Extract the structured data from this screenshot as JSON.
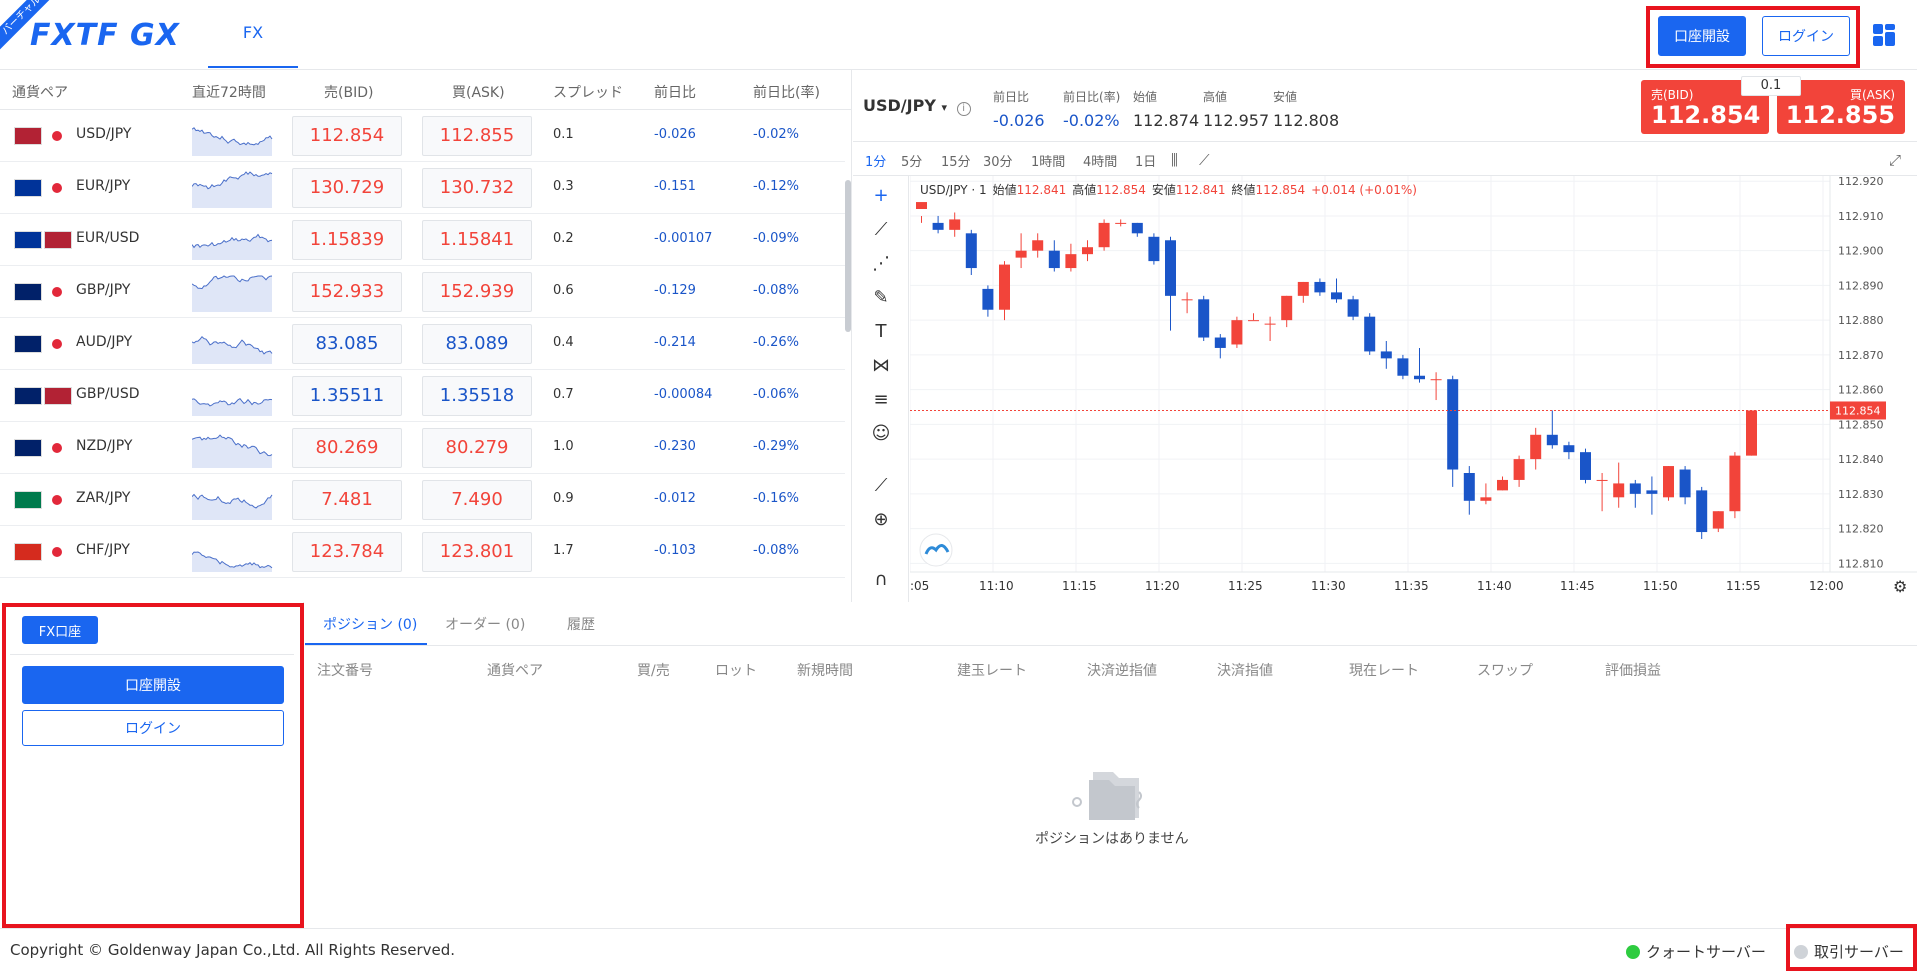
{
  "header": {
    "logo": "FXTF GX",
    "ribbon": "バーチャル",
    "tab_fx": "FX",
    "open_account": "口座開設",
    "login": "ログイン"
  },
  "rates_table": {
    "columns": [
      "通貨ペア",
      "直近72時間",
      "売(BID)",
      "買(ASK)",
      "スプレッド",
      "前日比",
      "前日比(率)"
    ],
    "rows": [
      {
        "pair": "USD/JPY",
        "bid": "112.854",
        "ask": "112.855",
        "spread": "0.1",
        "change": "-0.026",
        "change_pct": "-0.02%",
        "price_color": "up"
      },
      {
        "pair": "EUR/JPY",
        "bid": "130.729",
        "ask": "130.732",
        "spread": "0.3",
        "change": "-0.151",
        "change_pct": "-0.12%",
        "price_color": "up"
      },
      {
        "pair": "EUR/USD",
        "bid": "1.15839",
        "ask": "1.15841",
        "spread": "0.2",
        "change": "-0.00107",
        "change_pct": "-0.09%",
        "price_color": "up"
      },
      {
        "pair": "GBP/JPY",
        "bid": "152.933",
        "ask": "152.939",
        "spread": "0.6",
        "change": "-0.129",
        "change_pct": "-0.08%",
        "price_color": "up"
      },
      {
        "pair": "AUD/JPY",
        "bid": "83.085",
        "ask": "83.089",
        "spread": "0.4",
        "change": "-0.214",
        "change_pct": "-0.26%",
        "price_color": "down"
      },
      {
        "pair": "GBP/USD",
        "bid": "1.35511",
        "ask": "1.35518",
        "spread": "0.7",
        "change": "-0.00084",
        "change_pct": "-0.06%",
        "price_color": "down"
      },
      {
        "pair": "NZD/JPY",
        "bid": "80.269",
        "ask": "80.279",
        "spread": "1.0",
        "change": "-0.230",
        "change_pct": "-0.29%",
        "price_color": "up"
      },
      {
        "pair": "ZAR/JPY",
        "bid": "7.481",
        "ask": "7.490",
        "spread": "0.9",
        "change": "-0.012",
        "change_pct": "-0.16%",
        "price_color": "up"
      },
      {
        "pair": "CHF/JPY",
        "bid": "123.784",
        "ask": "123.801",
        "spread": "1.7",
        "change": "-0.103",
        "change_pct": "-0.08%",
        "price_color": "up"
      }
    ]
  },
  "chart_header": {
    "symbol": "USD/JPY",
    "stats": [
      {
        "label": "前日比",
        "value": "-0.026",
        "color": "#1a55c8"
      },
      {
        "label": "前日比(率)",
        "value": "-0.02%",
        "color": "#1a55c8"
      },
      {
        "label": "始値",
        "value": "112.874",
        "color": "#333333"
      },
      {
        "label": "高値",
        "value": "112.957",
        "color": "#333333"
      },
      {
        "label": "安値",
        "value": "112.808",
        "color": "#333333"
      }
    ],
    "bid_label": "売(BID)",
    "bid_value": "112.854",
    "ask_label": "買(ASK)",
    "ask_value": "112.855",
    "spread": "0.1"
  },
  "timeframes": [
    "1分",
    "5分",
    "15分",
    "30分",
    "1時間",
    "4時間",
    "1日"
  ],
  "chart_legend": {
    "title": "USD/JPY · 1",
    "open_label": "始値",
    "open": "112.841",
    "high_label": "高値",
    "high": "112.854",
    "low_label": "安値",
    "low": "112.841",
    "close_label": "終値",
    "close": "112.854",
    "change": "+0.014 (+0.01%)"
  },
  "chart_data": {
    "type": "candlestick",
    "x_ticks": [
      ":05",
      "11:10",
      "11:15",
      "11:20",
      "11:25",
      "11:30",
      "11:35",
      "11:40",
      "11:45",
      "11:50",
      "11:55",
      "12:00"
    ],
    "y_ticks": [
      "112.920",
      "112.910",
      "112.900",
      "112.890",
      "112.880",
      "112.870",
      "112.860",
      "112.850",
      "112.840",
      "112.830",
      "112.820",
      "112.810"
    ],
    "ylim": [
      112.8075,
      112.9215
    ],
    "current_price": "112.854",
    "candles": [
      [
        112.912,
        112.914,
        112.91,
        112.908
      ],
      [
        112.908,
        112.906,
        112.91,
        112.905
      ],
      [
        112.906,
        112.909,
        112.911,
        112.904
      ],
      [
        112.905,
        112.895,
        112.906,
        112.893
      ],
      [
        112.889,
        112.883,
        112.89,
        112.881
      ],
      [
        112.883,
        112.896,
        112.897,
        112.88
      ],
      [
        112.898,
        112.9,
        112.905,
        112.895
      ],
      [
        112.9,
        112.903,
        112.905,
        112.898
      ],
      [
        112.9,
        112.895,
        112.903,
        112.894
      ],
      [
        112.895,
        112.899,
        112.902,
        112.894
      ],
      [
        112.899,
        112.901,
        112.903,
        112.897
      ],
      [
        112.901,
        112.908,
        112.909,
        112.9
      ],
      [
        112.908,
        112.908,
        112.909,
        112.907
      ],
      [
        112.908,
        112.905,
        112.908,
        112.904
      ],
      [
        112.904,
        112.897,
        112.905,
        112.896
      ],
      [
        112.903,
        112.887,
        112.904,
        112.877
      ],
      [
        112.886,
        112.886,
        112.888,
        112.882
      ],
      [
        112.886,
        112.875,
        112.887,
        112.874
      ],
      [
        112.875,
        112.872,
        112.876,
        112.869
      ],
      [
        112.873,
        112.88,
        112.881,
        112.872
      ],
      [
        112.88,
        112.88,
        112.882,
        112.88
      ],
      [
        112.879,
        112.879,
        112.881,
        112.874
      ],
      [
        112.88,
        112.887,
        112.887,
        112.878
      ],
      [
        112.887,
        112.891,
        112.891,
        112.885
      ],
      [
        112.891,
        112.888,
        112.892,
        112.887
      ],
      [
        112.888,
        112.886,
        112.892,
        112.885
      ],
      [
        112.886,
        112.881,
        112.887,
        112.88
      ],
      [
        112.881,
        112.871,
        112.882,
        112.87
      ],
      [
        112.871,
        112.869,
        112.874,
        112.866
      ],
      [
        112.869,
        112.864,
        112.87,
        112.863
      ],
      [
        112.864,
        112.863,
        112.872,
        112.862
      ],
      [
        112.863,
        112.863,
        112.865,
        112.857
      ],
      [
        112.863,
        112.837,
        112.864,
        112.832
      ],
      [
        112.836,
        112.828,
        112.838,
        112.824
      ],
      [
        112.828,
        112.829,
        112.833,
        112.827
      ],
      [
        112.831,
        112.834,
        112.835,
        112.831
      ],
      [
        112.834,
        112.84,
        112.841,
        112.832
      ],
      [
        112.84,
        112.847,
        112.849,
        112.837
      ],
      [
        112.847,
        112.844,
        112.854,
        112.843
      ],
      [
        112.844,
        112.842,
        112.845,
        112.84
      ],
      [
        112.842,
        112.834,
        112.843,
        112.833
      ],
      [
        112.834,
        112.834,
        112.836,
        112.825
      ],
      [
        112.829,
        112.833,
        112.839,
        112.826
      ],
      [
        112.833,
        112.83,
        112.834,
        112.826
      ],
      [
        112.831,
        112.83,
        112.835,
        112.824
      ],
      [
        112.829,
        112.838,
        112.838,
        112.828
      ],
      [
        112.837,
        112.829,
        112.838,
        112.827
      ],
      [
        112.831,
        112.819,
        112.832,
        112.817
      ],
      [
        112.82,
        112.825,
        112.825,
        112.819
      ],
      [
        112.825,
        112.841,
        112.842,
        112.823
      ],
      [
        112.841,
        112.854,
        112.854,
        112.841
      ]
    ]
  },
  "account": {
    "tag": "FX口座",
    "open_account": "口座開設",
    "login": "ログイン"
  },
  "positions": {
    "tabs": [
      "ポジション (0)",
      "オーダー (0)",
      "履歴"
    ],
    "columns": [
      "注文番号",
      "通貨ペア",
      "買/売",
      "ロット",
      "新規時間",
      "建玉レート",
      "決済逆指値",
      "決済指値",
      "現在レート",
      "スワップ",
      "評価損益"
    ],
    "empty_message": "ポジションはありません"
  },
  "footer": {
    "copyright": "Copyright © Goldenway Japan Co.,Ltd. All Rights Reserved.",
    "quote_server": "クォートサーバー",
    "trade_server": "取引サーバー",
    "quote_status_color": "#2ecc40",
    "trade_status_color": "#cfd3d8"
  },
  "colors": {
    "accent": "#1a66f0",
    "bid_red": "#f2443a",
    "candle_up": "#f2443a",
    "candle_down": "#1a55c8"
  }
}
